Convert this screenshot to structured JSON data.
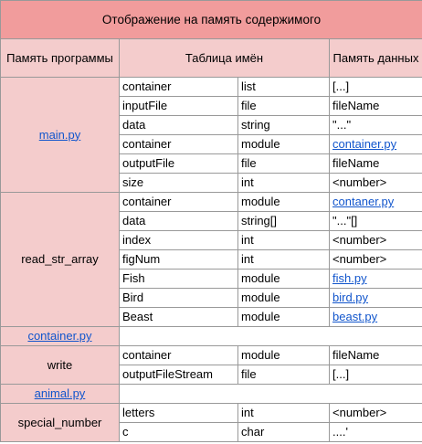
{
  "title": "Отображение на память содержимого",
  "headers": {
    "program_memory": "Память программы",
    "name_table": "Таблица имён",
    "data_memory": "Память данных"
  },
  "groups": [
    {
      "program": "main.py",
      "program_is_link": true,
      "rows": [
        {
          "name": "container",
          "type": "list",
          "data": "[...]",
          "data_is_link": false
        },
        {
          "name": "inputFile",
          "type": "file",
          "data": "fileName",
          "data_is_link": false
        },
        {
          "name": "data",
          "type": "string",
          "data": "\"...\"",
          "data_is_link": false
        },
        {
          "name": "container",
          "type": "module",
          "data": "container.py",
          "data_is_link": true
        },
        {
          "name": "outputFile",
          "type": "file",
          "data": "fileName",
          "data_is_link": false
        },
        {
          "name": "size",
          "type": "int",
          "data": "<number>",
          "data_is_link": false
        }
      ]
    },
    {
      "program": "read_str_array",
      "program_is_link": false,
      "rows": [
        {
          "name": "container",
          "type": "module",
          "data": "contaner.py",
          "data_is_link": true
        },
        {
          "name": "data",
          "type": "string[]",
          "data": "\"...\"[]",
          "data_is_link": false
        },
        {
          "name": "index",
          "type": "int",
          "data": "<number>",
          "data_is_link": false
        },
        {
          "name": "figNum",
          "type": "int",
          "data": "<number>",
          "data_is_link": false
        },
        {
          "name": "Fish",
          "type": "module",
          "data": "fish.py",
          "data_is_link": true
        },
        {
          "name": "Bird",
          "type": "module",
          "data": "bird.py",
          "data_is_link": true
        },
        {
          "name": "Beast",
          "type": "module",
          "data": "beast.py",
          "data_is_link": true
        }
      ]
    },
    {
      "program": "container.py",
      "program_is_link": true,
      "rows": []
    },
    {
      "program": "write",
      "program_is_link": false,
      "rows": [
        {
          "name": "container",
          "type": "module",
          "data": "fileName",
          "data_is_link": false
        },
        {
          "name": "outputFileStream",
          "type": "file",
          "data": "[...]",
          "data_is_link": false
        }
      ]
    },
    {
      "program": "animal.py",
      "program_is_link": true,
      "rows": []
    },
    {
      "program": "special_number",
      "program_is_link": false,
      "rows": [
        {
          "name": "letters",
          "type": "int",
          "data": "<number>",
          "data_is_link": false
        },
        {
          "name": "c",
          "type": "char",
          "data": "....'",
          "data_is_link": false
        }
      ]
    }
  ]
}
